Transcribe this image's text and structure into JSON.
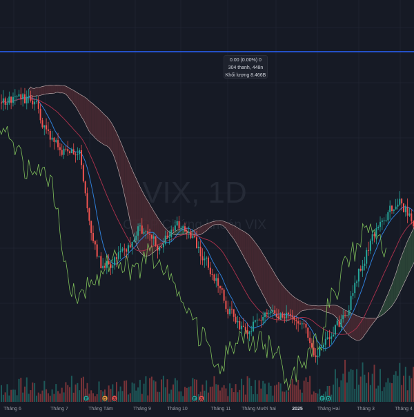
{
  "watermark": {
    "symbol": "VIX, 1D",
    "name": "CTCP Chứng khoán VIX"
  },
  "tooltip": {
    "line1": "0.00 (0.00%) 0",
    "line2": "304 thanh, 448n",
    "line3": "Khối lượng 8.466B"
  },
  "colors": {
    "background": "#161a25",
    "up": "#26a69a",
    "down": "#ef5350",
    "lagging_span": "#7fbf5a",
    "tenkan": "#2f7fd8",
    "kijun": "#a3304a",
    "cloud_bull": "#2e4a3a",
    "cloud_bear": "#4a2a33",
    "horizontal_line": "#2962ff"
  },
  "chart_data": {
    "type": "candlestick",
    "indicator": "Ichimoku Cloud",
    "interval": "1D",
    "x_labels": [
      "Tháng 6",
      "Tháng 7",
      "Tháng Tám",
      "Tháng 9",
      "Tháng 10",
      "Tháng 11",
      "Tháng Mười hai",
      "2025",
      "Tháng Hai",
      "Tháng 3",
      "Tháng 4"
    ],
    "events": [
      "E",
      "D",
      "S",
      "E",
      "S",
      "E",
      "D"
    ],
    "horizontal_line_value": 1.0
  }
}
